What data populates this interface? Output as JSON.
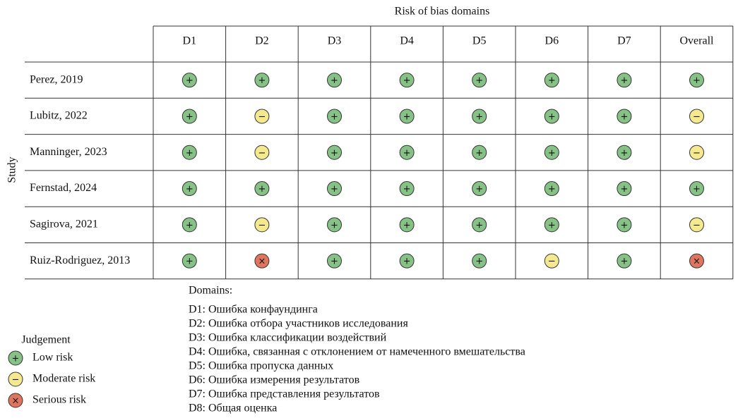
{
  "header": {
    "title": "Risk of bias domains",
    "y_label": "Study"
  },
  "table": {
    "columns": [
      "D1",
      "D2",
      "D3",
      "D4",
      "D5",
      "D6",
      "D7",
      "Overall"
    ],
    "rows": [
      {
        "study": "Perez, 2019",
        "cells": [
          "+",
          "+",
          "+",
          "+",
          "+",
          "+",
          "+",
          "+"
        ]
      },
      {
        "study": "Lubitz, 2022",
        "cells": [
          "+",
          "−",
          "+",
          "+",
          "+",
          "+",
          "+",
          "−"
        ]
      },
      {
        "study": "Manninger, 2023",
        "cells": [
          "+",
          "−",
          "+",
          "+",
          "+",
          "+",
          "+",
          "−"
        ]
      },
      {
        "study": "Fernstad, 2024",
        "cells": [
          "+",
          "+",
          "+",
          "+",
          "+",
          "+",
          "+",
          "+"
        ]
      },
      {
        "study": "Sagirova, 2021",
        "cells": [
          "+",
          "−",
          "+",
          "+",
          "+",
          "+",
          "+",
          "−"
        ]
      },
      {
        "study": "Ruiz-Rodriguez, 2013",
        "cells": [
          "+",
          "×",
          "+",
          "+",
          "+",
          "−",
          "+",
          "×"
        ]
      }
    ]
  },
  "legend": {
    "title": "Judgement",
    "items": [
      {
        "symbol": "+",
        "label": "Low risk",
        "color": "#86c186"
      },
      {
        "symbol": "−",
        "label": "Moderate risk",
        "color": "#f4e98e"
      },
      {
        "symbol": "×",
        "label": "Serious risk",
        "color": "#e0755f"
      }
    ]
  },
  "domains": {
    "title": "Domains:",
    "items": [
      "D1: Ошибка конфаундинга",
      "D2: Ошибка отбора участников исследования",
      "D3: Ошибка классификации воздействий",
      "D4: Ошибка, связанная с отклонением от намеченного вмешательства",
      "D5: Ошибка пропуска данных",
      "D6: Ошибка измерения результатов",
      "D7: Ошибка представления результатов",
      "D8: Общая оценка"
    ]
  }
}
